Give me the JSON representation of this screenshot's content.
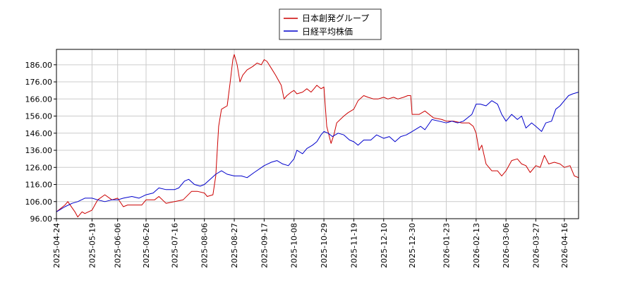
{
  "chart_data": {
    "type": "line",
    "title": "",
    "xlabel": "",
    "ylabel": "",
    "ylim": [
      96,
      195
    ],
    "xlim": [
      "2025-04-24",
      "2026-04-26"
    ],
    "grid": true,
    "legend_position": "top-center",
    "yticks": [
      96,
      106,
      116,
      126,
      136,
      146,
      156,
      166,
      176,
      186
    ],
    "ytick_labels": [
      "96.00",
      "106.00",
      "116.00",
      "126.00",
      "136.00",
      "146.00",
      "156.00",
      "166.00",
      "176.00",
      "186.00"
    ],
    "xticks": [
      "2025-04-24",
      "2025-05-19",
      "2025-06-06",
      "2025-06-26",
      "2025-07-16",
      "2025-08-06",
      "2025-08-27",
      "2025-09-17",
      "2025-10-08",
      "2025-10-29",
      "2025-11-19",
      "2025-12-10",
      "2025-12-30",
      "2026-01-23",
      "2026-02-13",
      "2026-03-06",
      "2026-03-27",
      "2026-04-16"
    ],
    "series": [
      {
        "name": "日本創発グループ",
        "color": "#cc0000",
        "points": [
          [
            "2025-04-24",
            100
          ],
          [
            "2025-04-30",
            104
          ],
          [
            "2025-05-02",
            106
          ],
          [
            "2025-05-07",
            100
          ],
          [
            "2025-05-09",
            97
          ],
          [
            "2025-05-12",
            100
          ],
          [
            "2025-05-14",
            99
          ],
          [
            "2025-05-19",
            101
          ],
          [
            "2025-05-23",
            107
          ],
          [
            "2025-05-28",
            110
          ],
          [
            "2025-06-02",
            107
          ],
          [
            "2025-06-06",
            108
          ],
          [
            "2025-06-10",
            103
          ],
          [
            "2025-06-13",
            104
          ],
          [
            "2025-06-18",
            104
          ],
          [
            "2025-06-23",
            104
          ],
          [
            "2025-06-26",
            107
          ],
          [
            "2025-07-02",
            107
          ],
          [
            "2025-07-05",
            109
          ],
          [
            "2025-07-10",
            105
          ],
          [
            "2025-07-16",
            106
          ],
          [
            "2025-07-22",
            107
          ],
          [
            "2025-07-28",
            112
          ],
          [
            "2025-08-01",
            112
          ],
          [
            "2025-08-06",
            111
          ],
          [
            "2025-08-08",
            109
          ],
          [
            "2025-08-12",
            110
          ],
          [
            "2025-08-14",
            121
          ],
          [
            "2025-08-16",
            150
          ],
          [
            "2025-08-18",
            160
          ],
          [
            "2025-08-20",
            161
          ],
          [
            "2025-08-22",
            162
          ],
          [
            "2025-08-24",
            175
          ],
          [
            "2025-08-26",
            189
          ],
          [
            "2025-08-27",
            192
          ],
          [
            "2025-08-29",
            186
          ],
          [
            "2025-08-31",
            176
          ],
          [
            "2025-09-02",
            180
          ],
          [
            "2025-09-05",
            183
          ],
          [
            "2025-09-09",
            185
          ],
          [
            "2025-09-12",
            187
          ],
          [
            "2025-09-15",
            186
          ],
          [
            "2025-09-17",
            189
          ],
          [
            "2025-09-19",
            188
          ],
          [
            "2025-09-22",
            184
          ],
          [
            "2025-09-25",
            180
          ],
          [
            "2025-09-29",
            174
          ],
          [
            "2025-10-01",
            166
          ],
          [
            "2025-10-03",
            168
          ],
          [
            "2025-10-06",
            170
          ],
          [
            "2025-10-08",
            171
          ],
          [
            "2025-10-10",
            169
          ],
          [
            "2025-10-14",
            170
          ],
          [
            "2025-10-17",
            172
          ],
          [
            "2025-10-20",
            170
          ],
          [
            "2025-10-22",
            172
          ],
          [
            "2025-10-24",
            174
          ],
          [
            "2025-10-27",
            172
          ],
          [
            "2025-10-29",
            173
          ],
          [
            "2025-10-31",
            150
          ],
          [
            "2025-11-03",
            140
          ],
          [
            "2025-11-05",
            145
          ],
          [
            "2025-11-07",
            152
          ],
          [
            "2025-11-12",
            156
          ],
          [
            "2025-11-15",
            158
          ],
          [
            "2025-11-19",
            160
          ],
          [
            "2025-11-22",
            165
          ],
          [
            "2025-11-26",
            168
          ],
          [
            "2025-11-29",
            167
          ],
          [
            "2025-12-03",
            166
          ],
          [
            "2025-12-06",
            166
          ],
          [
            "2025-12-10",
            167
          ],
          [
            "2025-12-13",
            166
          ],
          [
            "2025-12-17",
            167
          ],
          [
            "2025-12-20",
            166
          ],
          [
            "2025-12-24",
            167
          ],
          [
            "2025-12-27",
            168
          ],
          [
            "2025-12-29",
            168
          ],
          [
            "2025-12-30",
            157
          ],
          [
            "2026-01-04",
            157
          ],
          [
            "2026-01-08",
            159
          ],
          [
            "2026-01-14",
            155
          ],
          [
            "2026-01-20",
            154
          ],
          [
            "2026-01-23",
            153
          ],
          [
            "2026-01-28",
            153
          ],
          [
            "2026-02-03",
            152
          ],
          [
            "2026-02-08",
            152
          ],
          [
            "2026-02-11",
            150
          ],
          [
            "2026-02-13",
            146
          ],
          [
            "2026-02-15",
            136
          ],
          [
            "2026-02-17",
            139
          ],
          [
            "2026-02-20",
            128
          ],
          [
            "2026-02-24",
            124
          ],
          [
            "2026-02-28",
            124
          ],
          [
            "2026-03-03",
            121
          ],
          [
            "2026-03-06",
            124
          ],
          [
            "2026-03-10",
            130
          ],
          [
            "2026-03-14",
            131
          ],
          [
            "2026-03-17",
            128
          ],
          [
            "2026-03-20",
            127
          ],
          [
            "2026-03-23",
            123
          ],
          [
            "2026-03-27",
            127
          ],
          [
            "2026-03-30",
            126
          ],
          [
            "2026-04-02",
            133
          ],
          [
            "2026-04-05",
            128
          ],
          [
            "2026-04-09",
            129
          ],
          [
            "2026-04-13",
            128
          ],
          [
            "2026-04-16",
            126
          ],
          [
            "2026-04-20",
            127
          ],
          [
            "2026-04-23",
            121
          ],
          [
            "2026-04-26",
            120
          ]
        ]
      },
      {
        "name": "日経平均株価",
        "color": "#0000cc",
        "points": [
          [
            "2025-04-24",
            100
          ],
          [
            "2025-04-30",
            103
          ],
          [
            "2025-05-05",
            105
          ],
          [
            "2025-05-09",
            106
          ],
          [
            "2025-05-14",
            108
          ],
          [
            "2025-05-19",
            108
          ],
          [
            "2025-05-23",
            107
          ],
          [
            "2025-05-28",
            106
          ],
          [
            "2025-06-02",
            107
          ],
          [
            "2025-06-06",
            107
          ],
          [
            "2025-06-10",
            108
          ],
          [
            "2025-06-16",
            109
          ],
          [
            "2025-06-21",
            108
          ],
          [
            "2025-06-26",
            110
          ],
          [
            "2025-07-01",
            111
          ],
          [
            "2025-07-05",
            114
          ],
          [
            "2025-07-10",
            113
          ],
          [
            "2025-07-16",
            113
          ],
          [
            "2025-07-19",
            114
          ],
          [
            "2025-07-23",
            118
          ],
          [
            "2025-07-26",
            119
          ],
          [
            "2025-07-30",
            116
          ],
          [
            "2025-08-03",
            115
          ],
          [
            "2025-08-06",
            116
          ],
          [
            "2025-08-10",
            119
          ],
          [
            "2025-08-14",
            122
          ],
          [
            "2025-08-18",
            124
          ],
          [
            "2025-08-22",
            122
          ],
          [
            "2025-08-27",
            121
          ],
          [
            "2025-09-01",
            121
          ],
          [
            "2025-09-05",
            120
          ],
          [
            "2025-09-10",
            123
          ],
          [
            "2025-09-17",
            127
          ],
          [
            "2025-09-22",
            129
          ],
          [
            "2025-09-26",
            130
          ],
          [
            "2025-09-30",
            128
          ],
          [
            "2025-10-04",
            127
          ],
          [
            "2025-10-08",
            131
          ],
          [
            "2025-10-10",
            136
          ],
          [
            "2025-10-14",
            134
          ],
          [
            "2025-10-17",
            137
          ],
          [
            "2025-10-21",
            139
          ],
          [
            "2025-10-24",
            141
          ],
          [
            "2025-10-27",
            145
          ],
          [
            "2025-10-29",
            147
          ],
          [
            "2025-11-01",
            146
          ],
          [
            "2025-11-04",
            144
          ],
          [
            "2025-11-08",
            146
          ],
          [
            "2025-11-12",
            145
          ],
          [
            "2025-11-16",
            142
          ],
          [
            "2025-11-19",
            141
          ],
          [
            "2025-11-22",
            139
          ],
          [
            "2025-11-26",
            142
          ],
          [
            "2025-12-01",
            142
          ],
          [
            "2025-12-05",
            145
          ],
          [
            "2025-12-10",
            143
          ],
          [
            "2025-12-14",
            144
          ],
          [
            "2025-12-18",
            141
          ],
          [
            "2025-12-22",
            144
          ],
          [
            "2025-12-26",
            145
          ],
          [
            "2025-12-30",
            147
          ],
          [
            "2026-01-05",
            150
          ],
          [
            "2026-01-08",
            148
          ],
          [
            "2026-01-13",
            154
          ],
          [
            "2026-01-18",
            153
          ],
          [
            "2026-01-23",
            152
          ],
          [
            "2026-01-27",
            153
          ],
          [
            "2026-01-31",
            152
          ],
          [
            "2026-02-04",
            153
          ],
          [
            "2026-02-07",
            155
          ],
          [
            "2026-02-10",
            157
          ],
          [
            "2026-02-13",
            163
          ],
          [
            "2026-02-16",
            163
          ],
          [
            "2026-02-20",
            162
          ],
          [
            "2026-02-24",
            165
          ],
          [
            "2026-02-28",
            163
          ],
          [
            "2026-03-03",
            157
          ],
          [
            "2026-03-06",
            153
          ],
          [
            "2026-03-10",
            157
          ],
          [
            "2026-03-14",
            154
          ],
          [
            "2026-03-17",
            156
          ],
          [
            "2026-03-20",
            149
          ],
          [
            "2026-03-24",
            152
          ],
          [
            "2026-03-27",
            150
          ],
          [
            "2026-03-31",
            147
          ],
          [
            "2026-04-03",
            152
          ],
          [
            "2026-04-07",
            153
          ],
          [
            "2026-04-10",
            160
          ],
          [
            "2026-04-13",
            162
          ],
          [
            "2026-04-16",
            165
          ],
          [
            "2026-04-19",
            168
          ],
          [
            "2026-04-22",
            169
          ],
          [
            "2026-04-26",
            170
          ]
        ]
      }
    ]
  }
}
